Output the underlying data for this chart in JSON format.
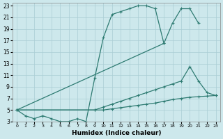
{
  "xlabel": "Humidex (Indice chaleur)",
  "background_color": "#cde8ec",
  "grid_color": "#aacdd4",
  "line_color": "#2e7b72",
  "xlim": [
    -0.5,
    23.5
  ],
  "ylim": [
    3,
    23.5
  ],
  "yticks": [
    3,
    5,
    7,
    9,
    11,
    13,
    15,
    17,
    19,
    21,
    23
  ],
  "xticks": [
    0,
    1,
    2,
    3,
    4,
    5,
    6,
    7,
    8,
    9,
    10,
    11,
    12,
    13,
    14,
    15,
    16,
    17,
    18,
    19,
    20,
    21,
    22,
    23
  ],
  "series": [
    {
      "x": [
        0,
        1,
        2,
        3,
        4,
        5,
        6,
        7,
        8,
        9,
        10,
        11,
        12,
        13,
        14,
        15,
        16,
        17
      ],
      "y": [
        5,
        4,
        3.5,
        4,
        3.5,
        3,
        3,
        3.5,
        3,
        10.5,
        17.5,
        21.5,
        22,
        22.5,
        23,
        23,
        22.5,
        16.5
      ]
    },
    {
      "x": [
        0,
        17,
        18,
        19,
        20,
        21
      ],
      "y": [
        5,
        16.5,
        20,
        22.5,
        22.5,
        20
      ]
    },
    {
      "x": [
        0,
        9,
        10,
        11,
        12,
        13,
        14,
        15,
        16,
        17,
        18,
        19,
        20,
        21,
        22,
        23
      ],
      "y": [
        5,
        5,
        5.5,
        6,
        6.5,
        7,
        7.5,
        8,
        8.5,
        9,
        9.5,
        10,
        12.5,
        10,
        8,
        7.5
      ]
    },
    {
      "x": [
        0,
        9,
        10,
        11,
        12,
        13,
        14,
        15,
        16,
        17,
        18,
        19,
        20,
        21,
        22,
        23
      ],
      "y": [
        5,
        5,
        5,
        5.2,
        5.4,
        5.6,
        5.8,
        6,
        6.2,
        6.5,
        6.8,
        7,
        7.2,
        7.3,
        7.4,
        7.5
      ]
    }
  ],
  "line_width": 0.9,
  "marker": "+",
  "markersize": 3.5,
  "markerwidth": 0.8
}
